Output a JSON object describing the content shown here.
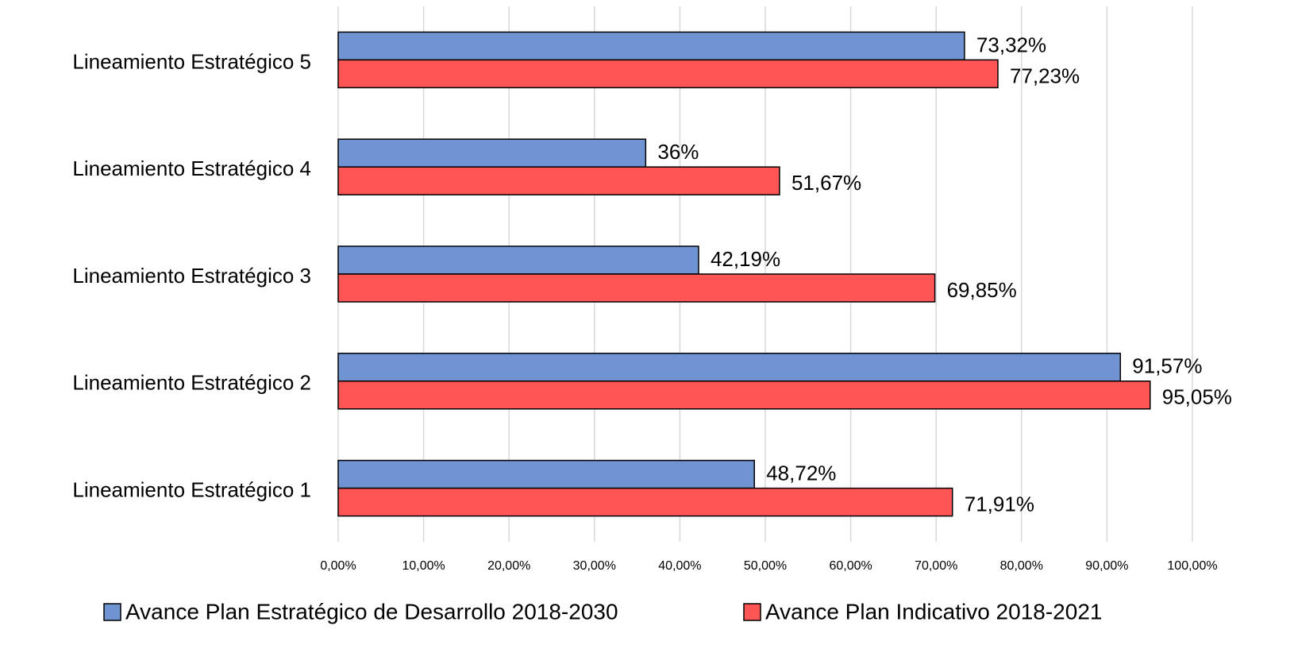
{
  "chart_data": {
    "type": "barh",
    "categories": [
      "Lineamiento Estratégico 1",
      "Lineamiento Estratégico 2",
      "Lineamiento Estratégico 3",
      "Lineamiento Estratégico 4",
      "Lineamiento Estratégico 5"
    ],
    "series": [
      {
        "name": "Avance Plan Estratégico de Desarrollo 2018-2030",
        "color": "#7094d2",
        "values": [
          48.72,
          91.57,
          42.19,
          36,
          73.32
        ],
        "value_labels": [
          "48,72%",
          "91,57%",
          "42,19%",
          "36%",
          "73,32%"
        ]
      },
      {
        "name": "Avance Plan Indicativo 2018-2021",
        "color": "#ff5555",
        "values": [
          71.91,
          95.05,
          69.85,
          51.67,
          77.23
        ],
        "value_labels": [
          "71,91%",
          "95,05%",
          "69,85%",
          "51,67%",
          "77,23%"
        ]
      }
    ],
    "xlim": [
      0,
      100
    ],
    "xticks": [
      {
        "value": 0,
        "label": "0,00%"
      },
      {
        "value": 10,
        "label": "10,00%"
      },
      {
        "value": 20,
        "label": "20,00%"
      },
      {
        "value": 30,
        "label": "30,00%"
      },
      {
        "value": 40,
        "label": "40,00%"
      },
      {
        "value": 50,
        "label": "50,00%"
      },
      {
        "value": 60,
        "label": "60,00%"
      },
      {
        "value": 70,
        "label": "70,00%"
      },
      {
        "value": 80,
        "label": "80,00%"
      },
      {
        "value": 90,
        "label": "90,00%"
      },
      {
        "value": 100,
        "label": "100,00%"
      }
    ],
    "grid": true,
    "legend": "bottom"
  }
}
